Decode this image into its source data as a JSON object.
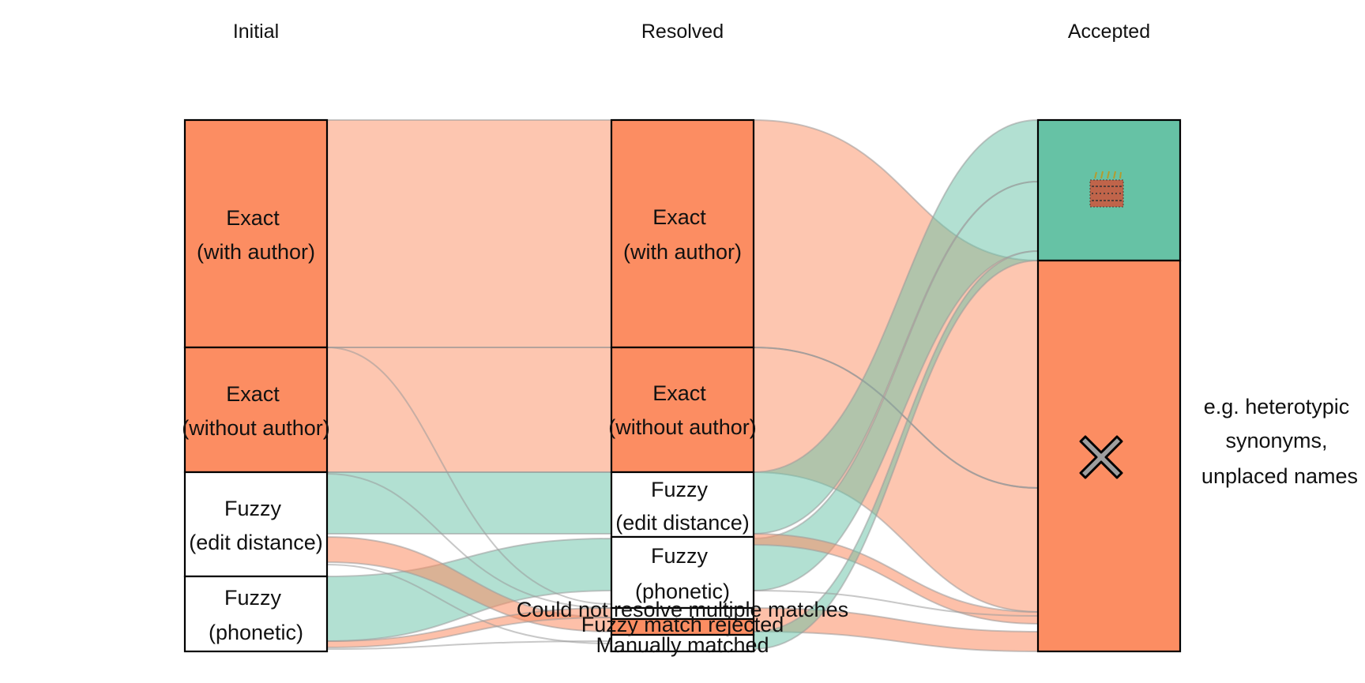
{
  "colors": {
    "orange": "#fc8d62",
    "green": "#66c2a5",
    "flow_orange": "#fc8d62",
    "flow_green": "#66c2a5"
  },
  "axes": {
    "initial": "Initial",
    "resolved": "Resolved",
    "accepted": "Accepted"
  },
  "nodes": {
    "initial": {
      "exact_with_author": [
        "Exact",
        "(with author)"
      ],
      "exact_without_author": [
        "Exact",
        "(without author)"
      ],
      "fuzzy_edit": [
        "Fuzzy",
        "(edit distance)"
      ],
      "fuzzy_phonetic": [
        "Fuzzy",
        "(phonetic)"
      ]
    },
    "resolved": {
      "exact_with_author": [
        "Exact",
        "(with author)"
      ],
      "exact_without_author": [
        "Exact",
        "(without author)"
      ],
      "fuzzy_edit": [
        "Fuzzy",
        "(edit distance)"
      ],
      "fuzzy_phonetic": [
        "Fuzzy",
        "(phonetic)"
      ],
      "could_not_resolve": "Could not resolve multiple matches",
      "fuzzy_rejected": "Fuzzy match rejected",
      "manually_matched": "Manually matched"
    },
    "accepted": {
      "accepted_icon": "celebration-icon",
      "rejected_icon": "cross-icon"
    }
  },
  "annotation": [
    "e.g. heterotypic",
    "synonyms,",
    "unplaced names"
  ]
}
